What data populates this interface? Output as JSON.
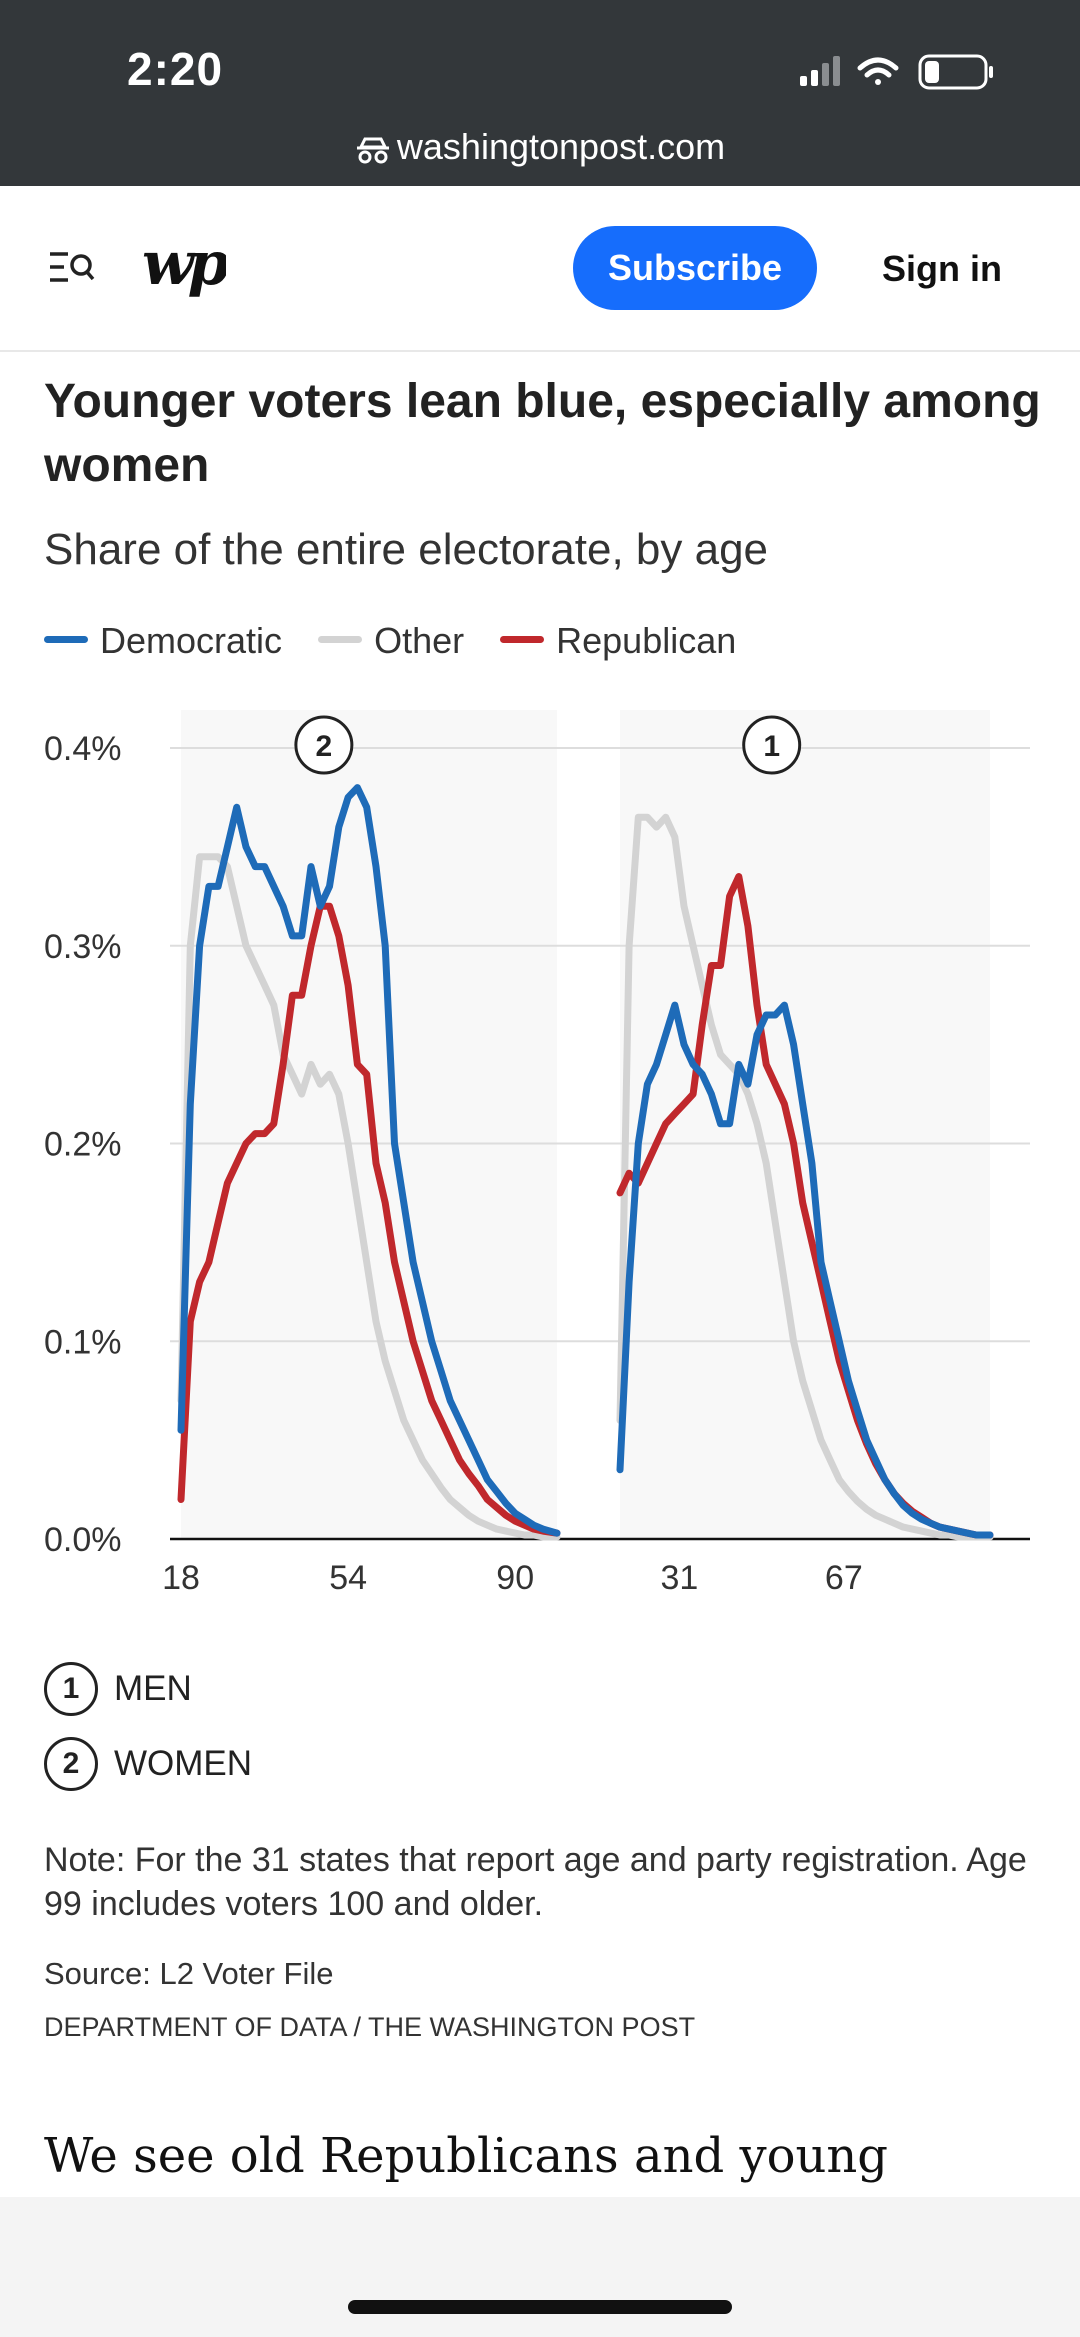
{
  "status_bar": {
    "time": "2:20",
    "url": "washingtonpost.com"
  },
  "header": {
    "subscribe_label": "Subscribe",
    "signin_label": "Sign in"
  },
  "article": {
    "chart_title": "Younger voters lean blue, especially among women",
    "chart_subtitle": "Share of the entire electorate, by age",
    "note": "Note: For the 31 states that report age and party registration. Age 99 includes voters 100 and older.",
    "source": "Source: L2 Voter File",
    "credit": "DEPARTMENT OF DATA / THE WASHINGTON POST",
    "teaser": "We see old Republicans and young"
  },
  "panel_key": [
    {
      "number": "1",
      "label": "MEN"
    },
    {
      "number": "2",
      "label": "WOMEN"
    }
  ],
  "colors": {
    "democratic": "#1e6bb8",
    "other": "#d3d3d3",
    "republican": "#c0282c",
    "subscribe_button": "#166dfc",
    "status_bar": "#33373a"
  },
  "chart_data": {
    "type": "line",
    "title": "Younger voters lean blue, especially among women",
    "subtitle": "Share of the entire electorate, by age",
    "legend": [
      "Democratic",
      "Other",
      "Republican"
    ],
    "legend_position": "top-left",
    "ylim": [
      0,
      0.4
    ],
    "yticks": [
      "0.0%",
      "0.1%",
      "0.2%",
      "0.3%",
      "0.4%"
    ],
    "grid": true,
    "panels": [
      {
        "marker": "2",
        "label": "WOMEN",
        "xlim": [
          18,
          99
        ],
        "xticks": [
          "18",
          "54",
          "90"
        ],
        "series": [
          {
            "name": "Democratic",
            "x": [
              18,
              20,
              22,
              24,
              26,
              28,
              30,
              32,
              34,
              36,
              38,
              40,
              42,
              44,
              46,
              48,
              50,
              52,
              54,
              56,
              58,
              60,
              62,
              64,
              66,
              68,
              70,
              72,
              74,
              76,
              78,
              80,
              82,
              84,
              86,
              88,
              90,
              92,
              94,
              96,
              99
            ],
            "y": [
              0.055,
              0.22,
              0.3,
              0.33,
              0.33,
              0.35,
              0.37,
              0.35,
              0.34,
              0.34,
              0.33,
              0.32,
              0.305,
              0.305,
              0.34,
              0.32,
              0.33,
              0.36,
              0.375,
              0.38,
              0.37,
              0.34,
              0.3,
              0.2,
              0.17,
              0.14,
              0.12,
              0.1,
              0.085,
              0.07,
              0.06,
              0.05,
              0.04,
              0.03,
              0.024,
              0.018,
              0.013,
              0.01,
              0.007,
              0.005,
              0.003
            ]
          },
          {
            "name": "Other",
            "x": [
              18,
              20,
              22,
              24,
              26,
              28,
              30,
              32,
              34,
              36,
              38,
              40,
              42,
              44,
              46,
              48,
              50,
              52,
              54,
              56,
              58,
              60,
              62,
              64,
              66,
              68,
              70,
              72,
              74,
              76,
              78,
              80,
              82,
              84,
              86,
              88,
              90,
              92,
              94,
              96,
              99
            ],
            "y": [
              0.07,
              0.3,
              0.345,
              0.345,
              0.345,
              0.34,
              0.32,
              0.3,
              0.29,
              0.28,
              0.27,
              0.245,
              0.235,
              0.225,
              0.24,
              0.23,
              0.235,
              0.225,
              0.2,
              0.17,
              0.14,
              0.11,
              0.09,
              0.075,
              0.06,
              0.05,
              0.04,
              0.033,
              0.026,
              0.02,
              0.016,
              0.012,
              0.009,
              0.007,
              0.005,
              0.004,
              0.003,
              0.002,
              0.002,
              0.001,
              0.001
            ]
          },
          {
            "name": "Republican",
            "x": [
              18,
              20,
              22,
              24,
              26,
              28,
              30,
              32,
              34,
              36,
              38,
              40,
              42,
              44,
              46,
              48,
              50,
              52,
              54,
              56,
              58,
              60,
              62,
              64,
              66,
              68,
              70,
              72,
              74,
              76,
              78,
              80,
              82,
              84,
              86,
              88,
              90,
              92,
              94,
              96,
              99
            ],
            "y": [
              0.02,
              0.11,
              0.13,
              0.14,
              0.16,
              0.18,
              0.19,
              0.2,
              0.205,
              0.205,
              0.21,
              0.24,
              0.275,
              0.275,
              0.3,
              0.32,
              0.32,
              0.305,
              0.28,
              0.24,
              0.235,
              0.19,
              0.17,
              0.14,
              0.12,
              0.1,
              0.085,
              0.07,
              0.06,
              0.05,
              0.04,
              0.033,
              0.027,
              0.02,
              0.016,
              0.012,
              0.009,
              0.007,
              0.005,
              0.004,
              0.003
            ]
          }
        ]
      },
      {
        "marker": "1",
        "label": "MEN",
        "xlim": [
          18,
          99
        ],
        "xticks": [
          "31",
          "67"
        ],
        "series": [
          {
            "name": "Democratic",
            "x": [
              18,
              20,
              22,
              24,
              26,
              28,
              30,
              32,
              34,
              36,
              38,
              40,
              42,
              44,
              46,
              48,
              50,
              52,
              54,
              56,
              58,
              60,
              62,
              64,
              66,
              68,
              70,
              72,
              74,
              76,
              78,
              80,
              82,
              84,
              86,
              88,
              90,
              92,
              94,
              96,
              99
            ],
            "y": [
              0.035,
              0.13,
              0.2,
              0.23,
              0.24,
              0.255,
              0.27,
              0.25,
              0.24,
              0.235,
              0.225,
              0.21,
              0.21,
              0.24,
              0.23,
              0.255,
              0.265,
              0.265,
              0.27,
              0.25,
              0.22,
              0.19,
              0.14,
              0.12,
              0.1,
              0.08,
              0.065,
              0.05,
              0.04,
              0.03,
              0.023,
              0.017,
              0.013,
              0.01,
              0.008,
              0.006,
              0.005,
              0.004,
              0.003,
              0.002,
              0.002
            ]
          },
          {
            "name": "Other",
            "x": [
              18,
              20,
              22,
              24,
              26,
              28,
              30,
              32,
              34,
              36,
              38,
              40,
              42,
              44,
              46,
              48,
              50,
              52,
              54,
              56,
              58,
              60,
              62,
              64,
              66,
              68,
              70,
              72,
              74,
              76,
              78,
              80,
              82,
              84,
              86,
              88,
              90,
              92,
              94,
              96,
              99
            ],
            "y": [
              0.06,
              0.3,
              0.365,
              0.365,
              0.36,
              0.365,
              0.355,
              0.32,
              0.3,
              0.28,
              0.26,
              0.245,
              0.24,
              0.235,
              0.225,
              0.21,
              0.19,
              0.16,
              0.13,
              0.1,
              0.08,
              0.065,
              0.05,
              0.04,
              0.03,
              0.024,
              0.019,
              0.015,
              0.012,
              0.01,
              0.008,
              0.006,
              0.005,
              0.004,
              0.003,
              0.002,
              0.002,
              0.001,
              0.001,
              0.001,
              0.001
            ]
          },
          {
            "name": "Republican",
            "x": [
              18,
              20,
              22,
              24,
              26,
              28,
              30,
              32,
              34,
              36,
              38,
              40,
              42,
              44,
              46,
              48,
              50,
              52,
              54,
              56,
              58,
              60,
              62,
              64,
              66,
              68,
              70,
              72,
              74,
              76,
              78,
              80,
              82,
              84,
              86,
              88,
              90,
              92,
              94,
              96,
              99
            ],
            "y": [
              0.175,
              0.185,
              0.18,
              0.19,
              0.2,
              0.21,
              0.215,
              0.22,
              0.225,
              0.26,
              0.29,
              0.29,
              0.325,
              0.335,
              0.31,
              0.27,
              0.24,
              0.23,
              0.22,
              0.2,
              0.17,
              0.15,
              0.13,
              0.11,
              0.09,
              0.075,
              0.06,
              0.048,
              0.038,
              0.03,
              0.023,
              0.018,
              0.014,
              0.011,
              0.008,
              0.006,
              0.005,
              0.004,
              0.003,
              0.002,
              0.002
            ]
          }
        ]
      }
    ]
  }
}
